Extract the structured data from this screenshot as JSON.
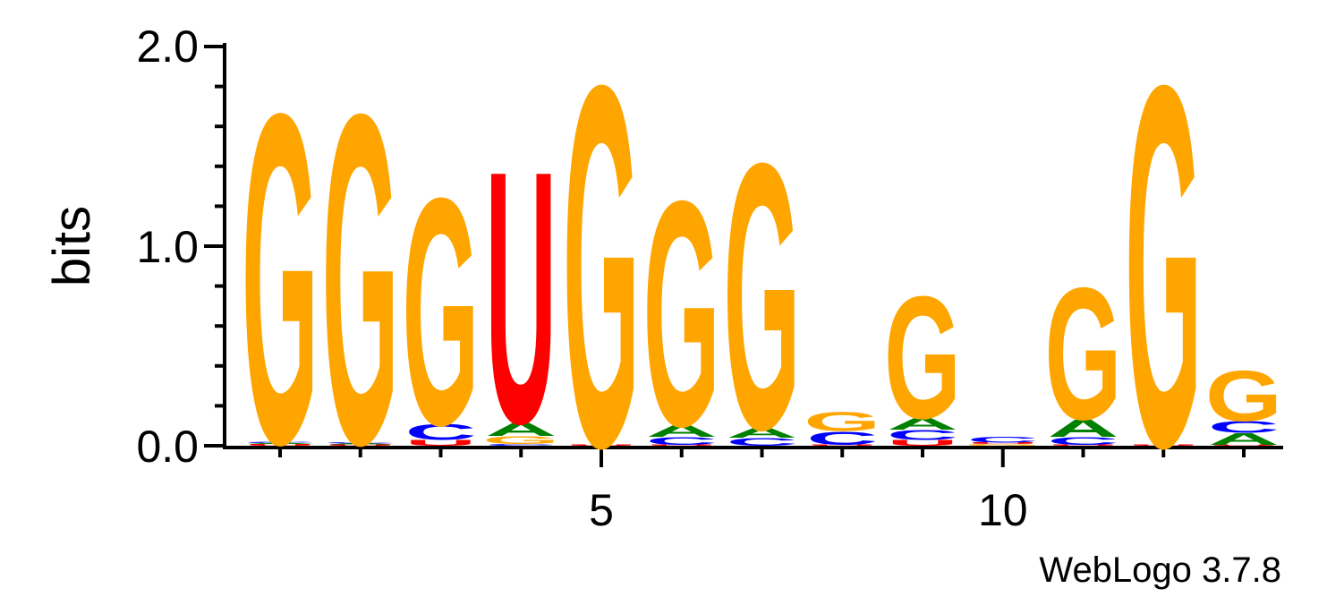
{
  "chart_data": {
    "type": "sequence-logo",
    "ylabel": "bits",
    "xlabel": "",
    "ylim": [
      0,
      2
    ],
    "y_ticks": [
      "0.0",
      "1.0",
      "2.0"
    ],
    "x_tick_labels": [
      {
        "position": 5,
        "label": "5"
      },
      {
        "position": 10,
        "label": "10"
      }
    ],
    "footer": "WebLogo 3.7.8",
    "colors": {
      "A": "#008000",
      "C": "#0000ff",
      "G": "#ffa500",
      "U": "#ff0000"
    },
    "positions": [
      {
        "pos": 1,
        "stack": [
          [
            "U",
            0.008
          ],
          [
            "A",
            0.006
          ],
          [
            "C",
            0.005
          ],
          [
            "G",
            1.7
          ]
        ]
      },
      {
        "pos": 2,
        "stack": [
          [
            "U",
            0.006
          ],
          [
            "A",
            0.006
          ],
          [
            "C",
            0.005
          ],
          [
            "G",
            1.7
          ]
        ]
      },
      {
        "pos": 3,
        "stack": [
          [
            "U",
            0.03
          ],
          [
            "C",
            0.08
          ],
          [
            "G",
            1.17
          ]
        ]
      },
      {
        "pos": 4,
        "stack": [
          [
            "C",
            0.01
          ],
          [
            "G",
            0.04
          ],
          [
            "A",
            0.07
          ],
          [
            "U",
            1.3
          ]
        ]
      },
      {
        "pos": 5,
        "stack": [
          [
            "U",
            0.005
          ],
          [
            "G",
            1.86
          ]
        ]
      },
      {
        "pos": 6,
        "stack": [
          [
            "U",
            0.005
          ],
          [
            "C",
            0.04
          ],
          [
            "A",
            0.06
          ],
          [
            "G",
            1.16
          ]
        ]
      },
      {
        "pos": 7,
        "stack": [
          [
            "C",
            0.04
          ],
          [
            "A",
            0.05
          ],
          [
            "G",
            1.37
          ]
        ]
      },
      {
        "pos": 8,
        "stack": [
          [
            "U",
            0.005
          ],
          [
            "C",
            0.07
          ],
          [
            "G",
            0.1
          ]
        ]
      },
      {
        "pos": 9,
        "stack": [
          [
            "U",
            0.03
          ],
          [
            "C",
            0.05
          ],
          [
            "A",
            0.06
          ],
          [
            "G",
            0.63
          ]
        ]
      },
      {
        "pos": 10,
        "stack": [
          [
            "G",
            0.008
          ],
          [
            "U",
            0.008
          ],
          [
            "C",
            0.03
          ]
        ]
      },
      {
        "pos": 11,
        "stack": [
          [
            "U",
            0.005
          ],
          [
            "C",
            0.04
          ],
          [
            "A",
            0.09
          ],
          [
            "G",
            0.68
          ]
        ]
      },
      {
        "pos": 12,
        "stack": [
          [
            "U",
            0.005
          ],
          [
            "G",
            1.86
          ]
        ]
      },
      {
        "pos": 13,
        "stack": [
          [
            "U",
            0.005
          ],
          [
            "A",
            0.06
          ],
          [
            "C",
            0.06
          ],
          [
            "G",
            0.26
          ]
        ]
      }
    ]
  }
}
